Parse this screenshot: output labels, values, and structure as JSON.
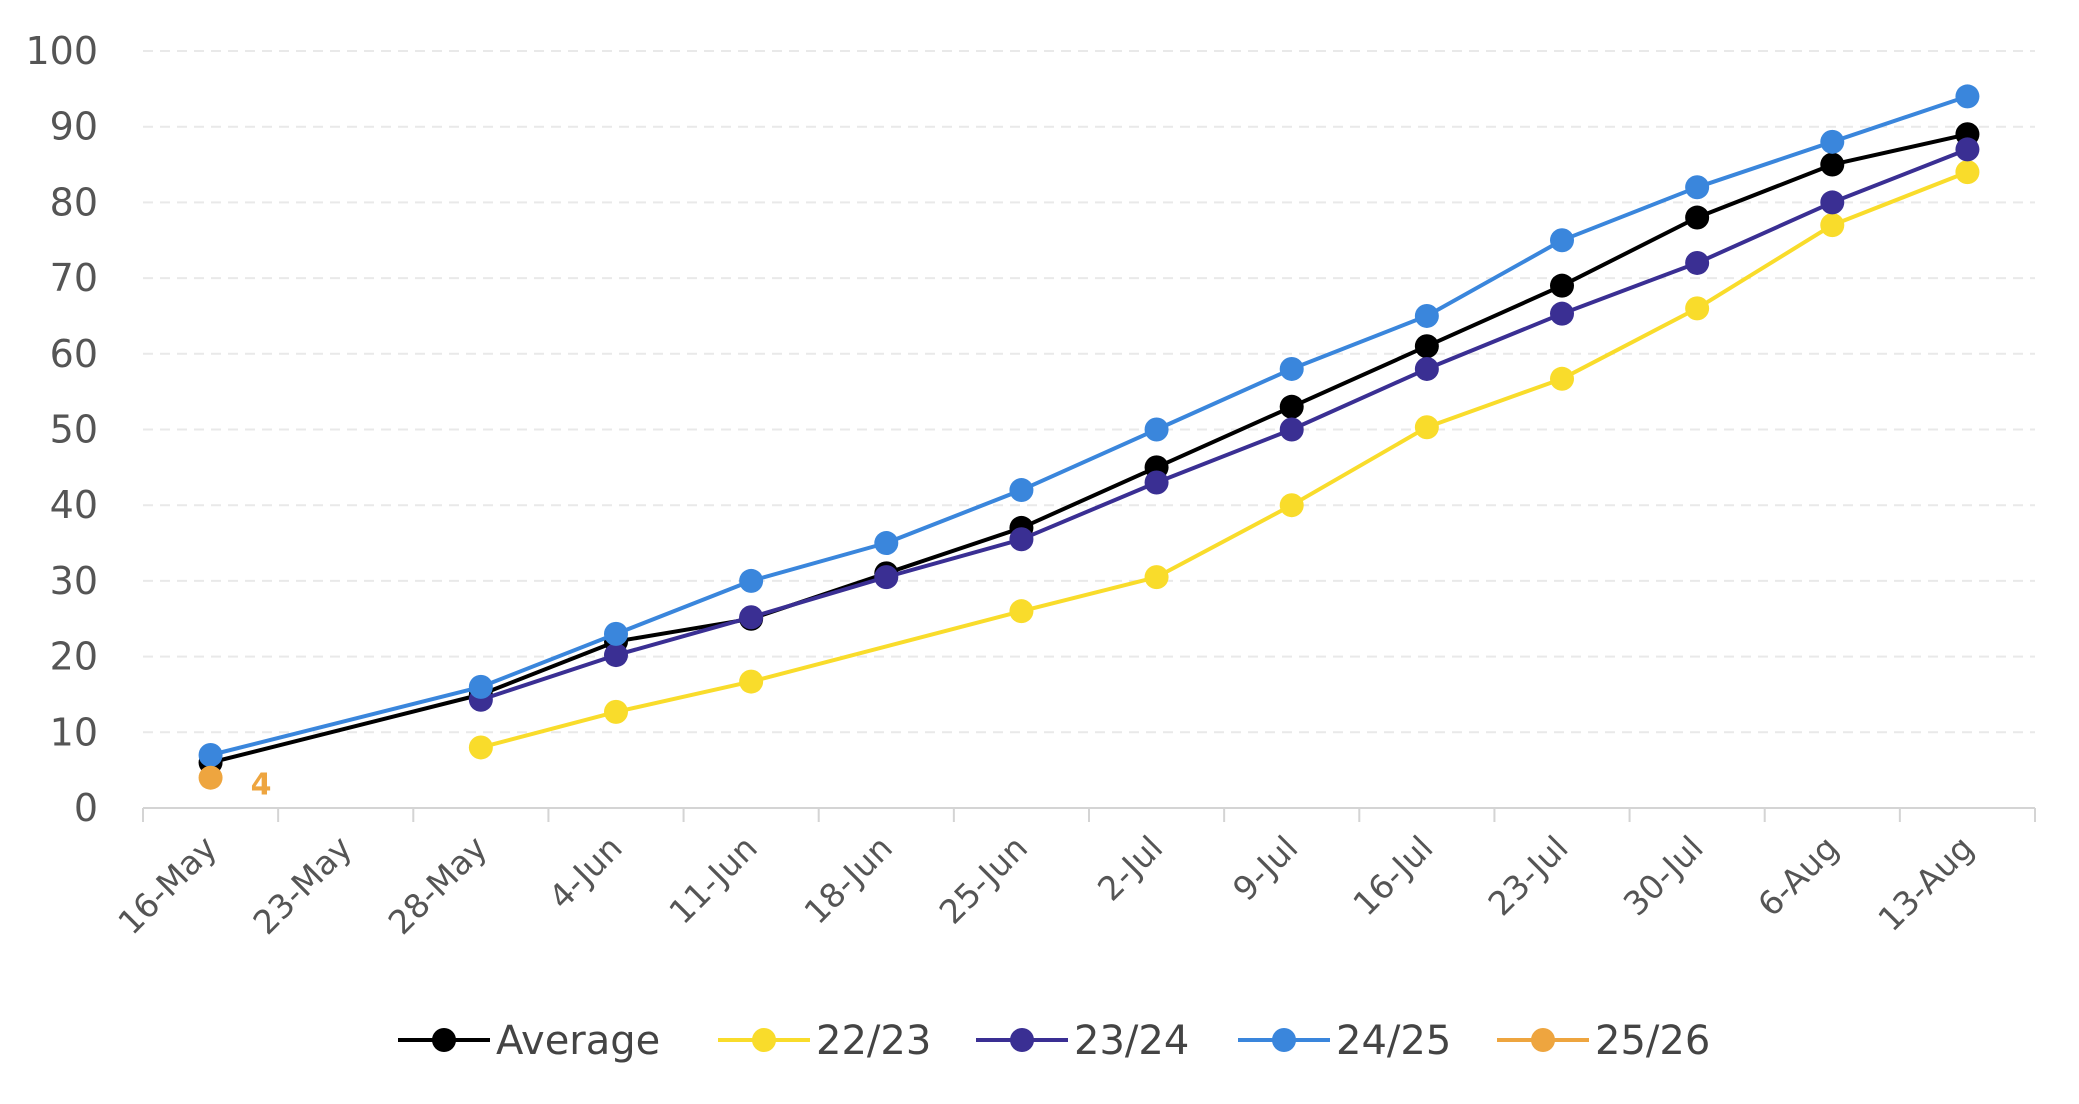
{
  "chart_data": {
    "type": "line",
    "categories": [
      "16-May",
      "23-May",
      "28-May",
      "4-Jun",
      "11-Jun",
      "18-Jun",
      "25-Jun",
      "2-Jul",
      "9-Jul",
      "16-Jul",
      "23-Jul",
      "30-Jul",
      "6-Aug",
      "13-Aug"
    ],
    "ylim": [
      0,
      100
    ],
    "yticks": [
      0,
      10,
      20,
      30,
      40,
      50,
      60,
      70,
      80,
      90,
      100
    ],
    "grid": "horizontal dashed",
    "legend_position": "bottom",
    "series": [
      {
        "name": "Average",
        "color": "#000000",
        "values": [
          6,
          null,
          15,
          22,
          25,
          31,
          37,
          45,
          53,
          61,
          69,
          78,
          85,
          89
        ]
      },
      {
        "name": "22/23",
        "color": "#F9DC2B",
        "values": [
          null,
          null,
          8,
          12.7,
          16.7,
          null,
          26,
          30.5,
          40,
          50.3,
          56.7,
          66,
          77,
          84
        ]
      },
      {
        "name": "23/24",
        "color": "#3A2F93",
        "values": [
          null,
          null,
          14.3,
          20.2,
          25.2,
          30.5,
          35.5,
          43,
          50,
          58,
          65.3,
          72,
          80,
          87
        ]
      },
      {
        "name": "24/25",
        "color": "#3A86DC",
        "values": [
          7,
          null,
          16,
          23,
          30,
          35,
          42,
          50,
          58,
          65,
          75,
          82,
          88,
          94
        ]
      },
      {
        "name": "25/26",
        "color": "#EEA53F",
        "values": [
          4,
          null,
          null,
          null,
          null,
          null,
          null,
          null,
          null,
          null,
          null,
          null,
          null,
          null
        ]
      }
    ],
    "data_labels": [
      {
        "series": "25/26",
        "category": "16-May",
        "text": "4"
      }
    ]
  }
}
